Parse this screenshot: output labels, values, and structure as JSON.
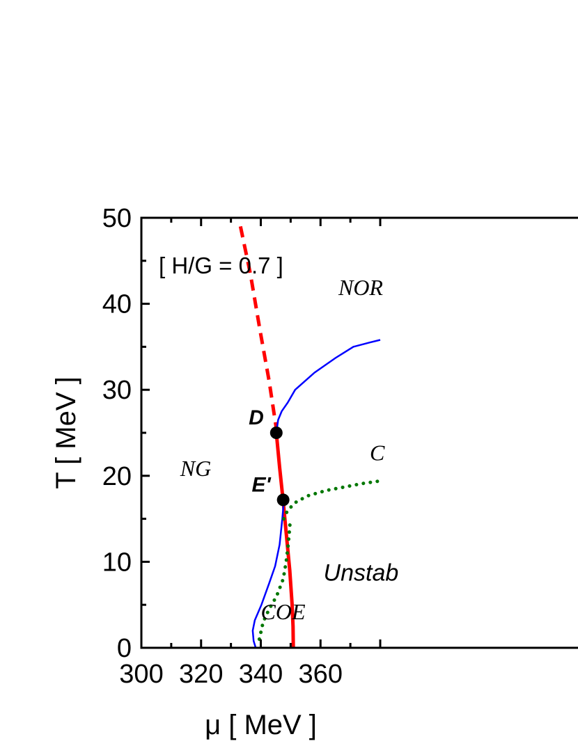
{
  "chart_data": {
    "type": "line",
    "xlabel": "μ  [ MeV ]",
    "ylabel": "T [ MeV ]",
    "xlim": [
      300,
      380
    ],
    "ylim": [
      0,
      50
    ],
    "xticks": [
      300,
      320,
      340,
      360
    ],
    "yticks": [
      0,
      10,
      20,
      30,
      40,
      50
    ],
    "xtick_labels": [
      "300",
      "320",
      "340",
      "360"
    ],
    "ytick_labels": [
      "0",
      "10",
      "20",
      "30",
      "40",
      "50"
    ],
    "grid": false,
    "parameter_label": "[ H/G  =  0.7 ]",
    "region_labels": [
      {
        "text": "NOR",
        "x": 366,
        "y": 41
      },
      {
        "text": "NG",
        "x": 313,
        "y": 20
      },
      {
        "text": "COE",
        "x": 340,
        "y": 3.3
      },
      {
        "text": "Unstab",
        "x": 361,
        "y": 7.8
      },
      {
        "text": "C",
        "x": 376.5,
        "y": 21.8
      }
    ],
    "series": [
      {
        "style": "red-dashed",
        "color": "#ff0000",
        "x": [
          333.2,
          336.5,
          339.7,
          342.8,
          345.2
        ],
        "y": [
          49,
          43.5,
          37,
          31,
          25.5
        ]
      },
      {
        "style": "red-solid",
        "color": "#ff0000",
        "x": [
          345.2,
          346.3,
          347.5,
          348.6,
          349.7,
          350.5,
          350.8,
          350.9
        ],
        "y": [
          25,
          21,
          17,
          13,
          9,
          5,
          2.5,
          0
        ]
      },
      {
        "style": "blue-solid",
        "color": "#0000ff",
        "x": [
          345.2,
          345.8,
          347,
          349,
          351.5,
          358,
          365,
          371,
          376.5,
          380
        ],
        "y": [
          25,
          26.5,
          27.5,
          28.5,
          30,
          32,
          33.7,
          35,
          35.5,
          35.8
        ]
      },
      {
        "style": "blue-solid",
        "color": "#0000ff",
        "x": [
          347.7,
          347.2,
          346.3,
          344.8,
          342.8,
          340.2,
          338,
          337.3,
          337.6,
          338.3
        ],
        "y": [
          17,
          15,
          12,
          9.5,
          7.5,
          5,
          3.2,
          2,
          0.8,
          0
        ]
      },
      {
        "style": "green-dotted",
        "color": "#007700",
        "x": [
          339.5,
          340.8,
          342.8,
          345.3,
          347.5,
          348.5,
          349.2,
          349.8
        ],
        "y": [
          1,
          3,
          4.5,
          6,
          8,
          10,
          12,
          14.5
        ]
      },
      {
        "style": "green-dotted",
        "color": "#007700",
        "x": [
          347.7,
          349,
          352,
          356,
          362,
          368,
          374,
          380
        ],
        "y": [
          15,
          16,
          17,
          17.7,
          18.3,
          18.7,
          19.1,
          19.4
        ]
      }
    ],
    "points": [
      {
        "label": "D",
        "x": 345.2,
        "y": 25
      },
      {
        "label": "E'",
        "x": 347.5,
        "y": 17.2
      }
    ]
  }
}
